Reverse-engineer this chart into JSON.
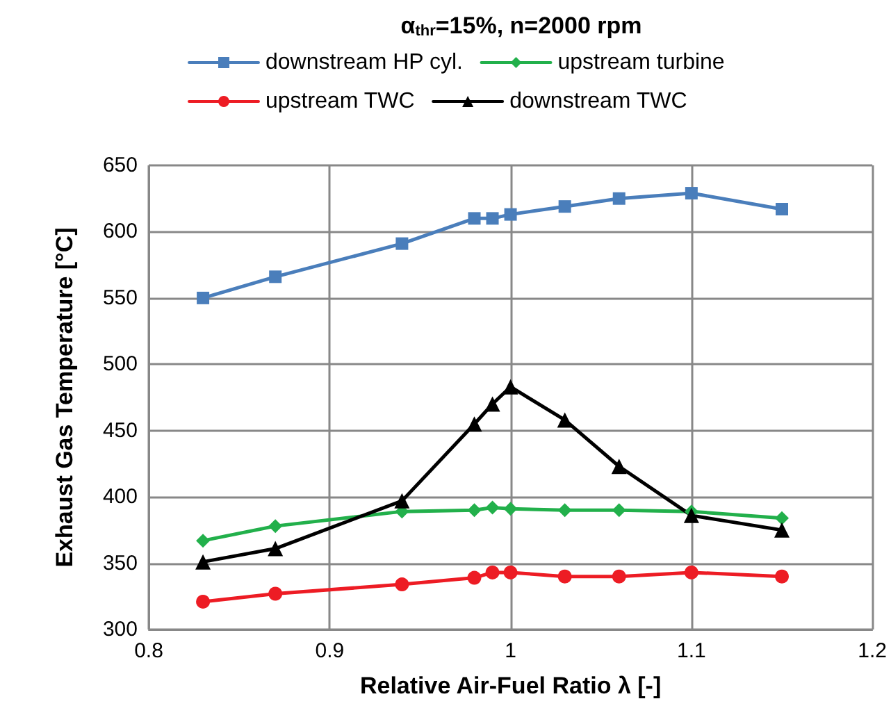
{
  "chart_data": {
    "type": "line",
    "title": "α$_{thr}$=15%, n=2000 rpm",
    "xlabel": "Relative Air-Fuel Ratio λ [-]",
    "ylabel": "Exhaust Gas Temperature [°C]",
    "x": [
      0.83,
      0.87,
      0.94,
      0.98,
      0.99,
      1.0,
      1.03,
      1.06,
      1.1,
      1.15
    ],
    "series": [
      {
        "name": "downstream HP cyl.",
        "color": "#4a7ebb",
        "marker": "square",
        "values": [
          550,
          566,
          591,
          610,
          610,
          613,
          619,
          625,
          629,
          617
        ]
      },
      {
        "name": "upstream turbine",
        "color": "#22b04b",
        "marker": "diamond",
        "values": [
          367,
          378,
          389,
          390,
          392,
          391,
          390,
          390,
          389,
          384
        ]
      },
      {
        "name": "upstream TWC",
        "color": "#ed1c24",
        "marker": "circle",
        "values": [
          321,
          327,
          334,
          339,
          343,
          343,
          340,
          340,
          343,
          340
        ]
      },
      {
        "name": "downstream TWC",
        "color": "#000000",
        "marker": "triangle",
        "values": [
          351,
          361,
          397,
          455,
          470,
          483,
          458,
          423,
          386,
          375
        ]
      }
    ],
    "xlim": [
      0.8,
      1.2
    ],
    "xticks": [
      0.8,
      0.9,
      1,
      1.1,
      1.2
    ],
    "ylim": [
      300,
      650
    ],
    "yticks": [
      300,
      350,
      400,
      450,
      500,
      550,
      600,
      650
    ],
    "grid": true,
    "legend": "top",
    "line_style": "solid"
  }
}
